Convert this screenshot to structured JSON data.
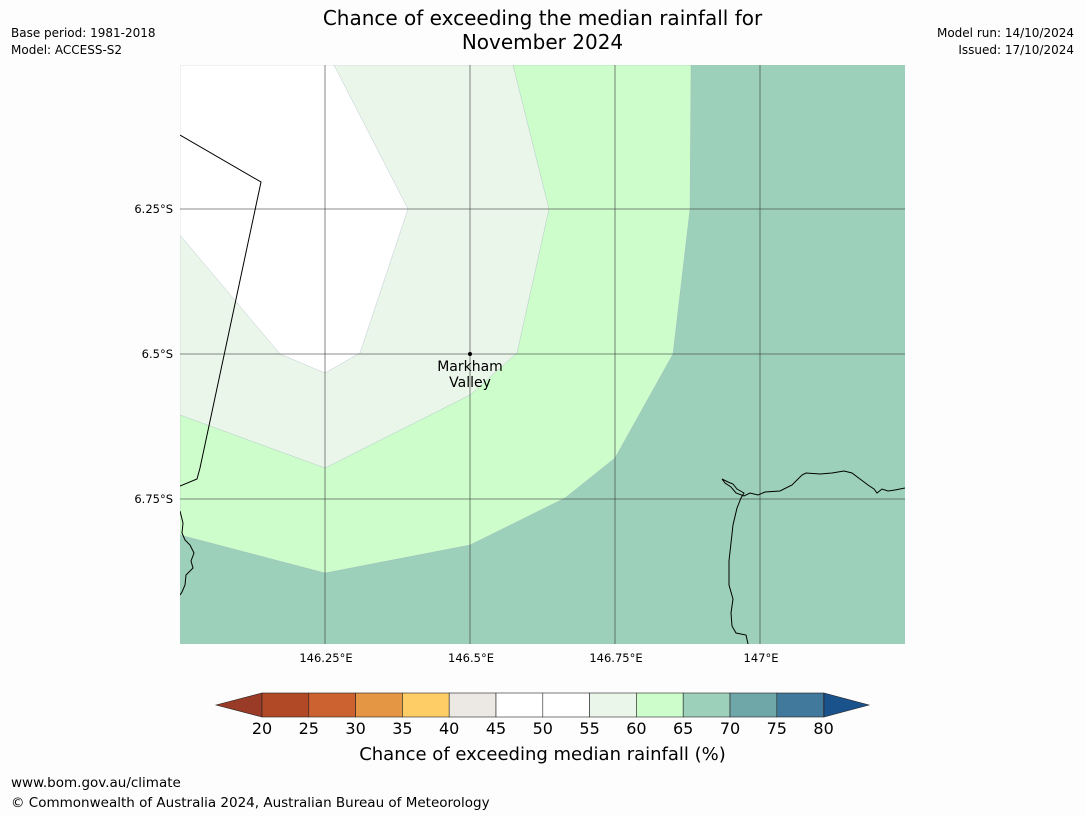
{
  "title": {
    "line1": "Chance of exceeding the median rainfall for",
    "line2": "November 2024"
  },
  "meta_left": {
    "base_period": "Base period: 1981-2018",
    "model": "Model: ACCESS-S2"
  },
  "meta_right": {
    "model_run": "Model run: 14/10/2024",
    "issued": "Issued: 17/10/2024"
  },
  "map": {
    "lat_labels": [
      "6.25°S",
      "6.5°S",
      "6.75°S"
    ],
    "lon_labels": [
      "146.25°E",
      "146.5°E",
      "146.75°E",
      "147°E"
    ],
    "place": {
      "name_line1": "Markham",
      "name_line2": "Valley"
    },
    "colors": {
      "band_50_55": "#ffffff",
      "band_55_60": "#eaf6ea",
      "band_60_65": "#ccfdca",
      "band_65_70": "#9dd0ba"
    }
  },
  "colorbar": {
    "ticks": [
      "20",
      "25",
      "30",
      "35",
      "40",
      "45",
      "50",
      "55",
      "60",
      "65",
      "70",
      "75",
      "80"
    ],
    "colors": [
      "#b14926",
      "#cd6231",
      "#e59645",
      "#fecd66",
      "#ece9e5",
      "#ffffff",
      "#ffffff",
      "#eaf6ea",
      "#ccfdca",
      "#9dd0ba",
      "#6fa6a7",
      "#41799c"
    ],
    "under_color": "#993b26",
    "over_color": "#1a528c",
    "label": "Chance of exceeding median rainfall (%)"
  },
  "footer": {
    "website": "www.bom.gov.au/climate",
    "copyright": "© Commonwealth of Australia 2024, Australian Bureau of Meteorology"
  }
}
